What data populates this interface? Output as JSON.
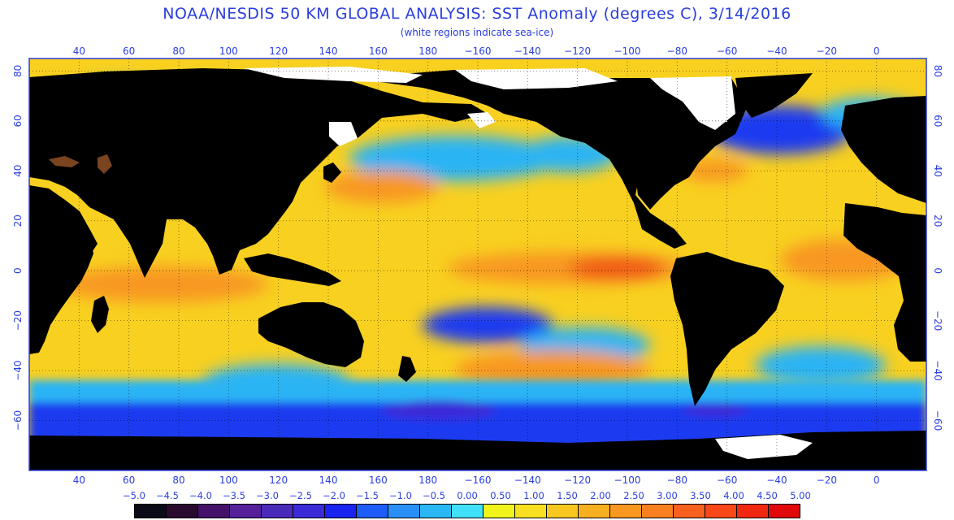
{
  "header": {
    "title": "NOAA/NESDIS 50 KM GLOBAL ANALYSIS: SST Anomaly (degrees C), 3/14/2016",
    "subtitle": "(white regions indicate sea-ice)"
  },
  "axes": {
    "longitude_ticks": [
      "40",
      "60",
      "80",
      "100",
      "120",
      "140",
      "160",
      "180",
      "−160",
      "−140",
      "−120",
      "−100",
      "−80",
      "−60",
      "−40",
      "−20",
      "0"
    ],
    "longitude_values": [
      40,
      60,
      80,
      100,
      120,
      140,
      160,
      180,
      -160,
      -140,
      -120,
      -100,
      -80,
      -60,
      -40,
      -20,
      0
    ],
    "latitude_ticks": [
      "80",
      "60",
      "40",
      "20",
      "0",
      "−20",
      "−40",
      "−60"
    ],
    "latitude_values": [
      80,
      60,
      40,
      20,
      0,
      -20,
      -40,
      -60
    ],
    "lon_range": [
      20,
      380
    ],
    "lat_range": [
      -80,
      85
    ],
    "grid": "dotted"
  },
  "legend": {
    "labels": [
      "−5.0",
      "−4.5",
      "−4.0",
      "−3.5",
      "−3.0",
      "−2.5",
      "−2.0",
      "−1.5",
      "−1.0",
      "−0.5",
      "0.00",
      "0.50",
      "1.00",
      "1.50",
      "2.00",
      "2.50",
      "3.00",
      "3.50",
      "4.00",
      "4.50",
      "5.00"
    ],
    "colors": [
      "#0a0a18",
      "#2a0a2e",
      "#44106a",
      "#55209a",
      "#4a2ab8",
      "#3a2ad8",
      "#1a24f0",
      "#1e5cf8",
      "#2a90f8",
      "#2ab8f4",
      "#40e0f8",
      "#f0f41a",
      "#f8e020",
      "#f8c820",
      "#f8b020",
      "#f89820",
      "#f88020",
      "#f86020",
      "#f84818",
      "#f02810",
      "#e00808"
    ]
  },
  "map_colors": {
    "ocean_base": "#f8d020",
    "land": "#000000",
    "sea_ice": "#ffffff",
    "cold": "#1a3af0",
    "cool": "#2ab4f4",
    "warm": "#f89820",
    "hot": "#f05818",
    "highland": "#7a4420"
  }
}
